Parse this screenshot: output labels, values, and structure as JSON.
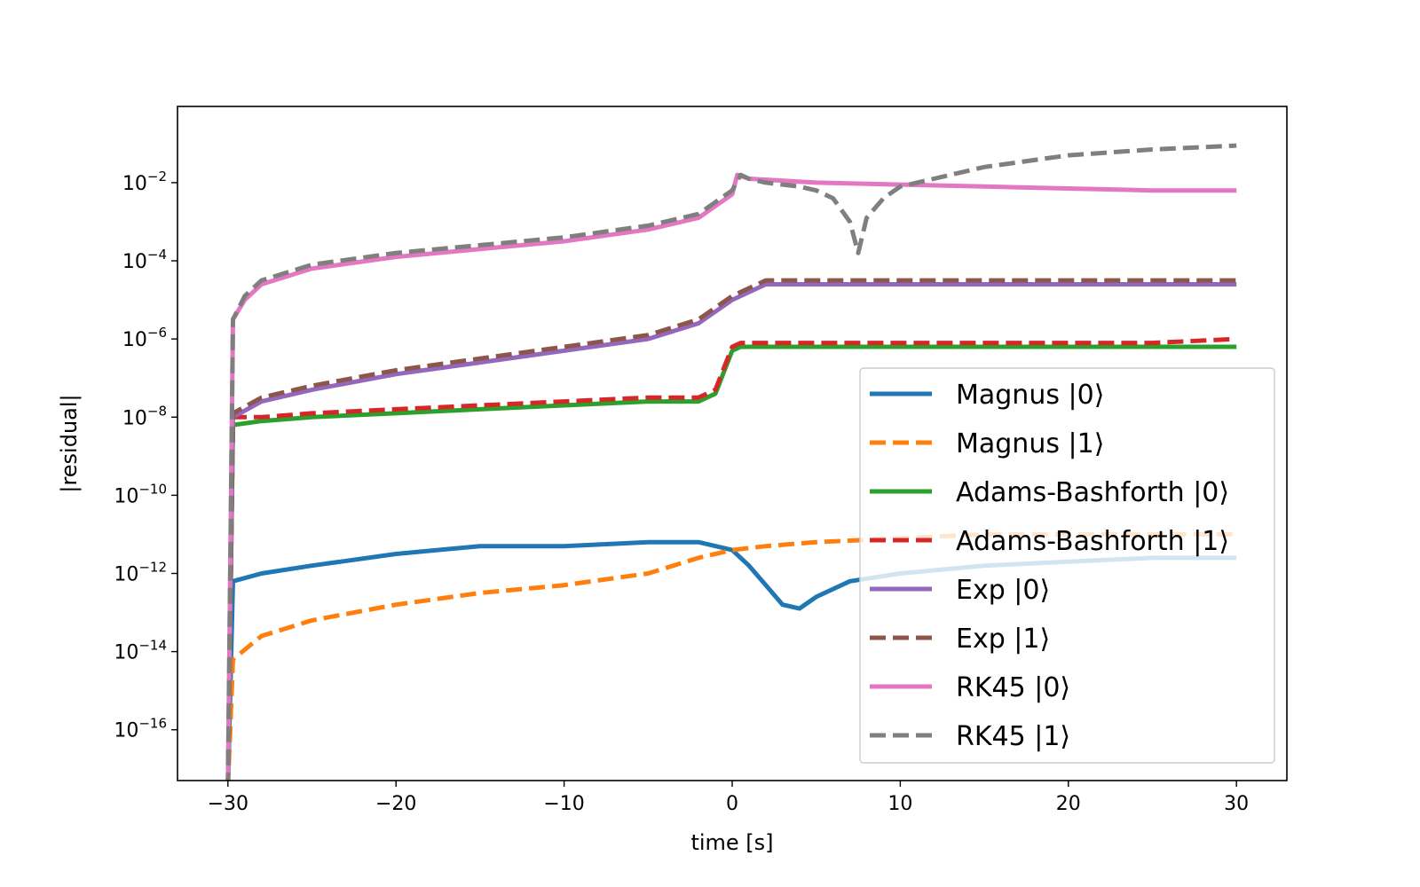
{
  "chart_data": {
    "type": "line",
    "xlabel": "time [s]",
    "ylabel": "|residual|",
    "xlim": [
      -33,
      33
    ],
    "ylim_log10": [
      -17.3,
      -0.05
    ],
    "yscale": "log",
    "grid": false,
    "legend_position": "lower-right",
    "x_ticks": [
      {
        "value": -30,
        "label": "−30"
      },
      {
        "value": -20,
        "label": "−20"
      },
      {
        "value": -10,
        "label": "−10"
      },
      {
        "value": 0,
        "label": "0"
      },
      {
        "value": 10,
        "label": "10"
      },
      {
        "value": 20,
        "label": "20"
      },
      {
        "value": 30,
        "label": "30"
      }
    ],
    "y_ticks": [
      {
        "exp": -2,
        "base": "10",
        "sup": "−2"
      },
      {
        "exp": -4,
        "base": "10",
        "sup": "−4"
      },
      {
        "exp": -6,
        "base": "10",
        "sup": "−6"
      },
      {
        "exp": -8,
        "base": "10",
        "sup": "−8"
      },
      {
        "exp": -10,
        "base": "10",
        "sup": "−10"
      },
      {
        "exp": -12,
        "base": "10",
        "sup": "−12"
      },
      {
        "exp": -14,
        "base": "10",
        "sup": "−14"
      },
      {
        "exp": -16,
        "base": "10",
        "sup": "−16"
      }
    ],
    "series": [
      {
        "name": "Magnus |0⟩",
        "color": "#1f77b4",
        "dashed": false,
        "x": [
          -30,
          -29.7,
          -28,
          -25,
          -20,
          -15,
          -10,
          -5,
          -2,
          0,
          1,
          2,
          3,
          4,
          5,
          6,
          7,
          10,
          15,
          20,
          25,
          30
        ],
        "y": [
          -17.5,
          -12.2,
          -12.0,
          -11.8,
          -11.5,
          -11.3,
          -11.3,
          -11.2,
          -11.2,
          -11.4,
          -11.8,
          -12.3,
          -12.8,
          -12.9,
          -12.6,
          -12.4,
          -12.2,
          -12.0,
          -11.8,
          -11.7,
          -11.6,
          -11.6
        ]
      },
      {
        "name": "Magnus |1⟩",
        "color": "#ff7f0e",
        "dashed": true,
        "x": [
          -30,
          -29.7,
          -28,
          -25,
          -20,
          -15,
          -10,
          -5,
          -2,
          0,
          2,
          5,
          10,
          15,
          20,
          25,
          30
        ],
        "y": [
          -17.5,
          -14.2,
          -13.6,
          -13.2,
          -12.8,
          -12.5,
          -12.3,
          -12.0,
          -11.6,
          -11.4,
          -11.3,
          -11.2,
          -11.1,
          -11.0,
          -11.0,
          -11.0,
          -11.0
        ]
      },
      {
        "name": "Adams-Bashforth |0⟩",
        "color": "#2ca02c",
        "dashed": false,
        "x": [
          -30,
          -29.7,
          -28,
          -25,
          -20,
          -15,
          -10,
          -5,
          -2,
          -1,
          0,
          0.5,
          1,
          2,
          5,
          10,
          15,
          20,
          25,
          30
        ],
        "y": [
          -17.5,
          -8.2,
          -8.1,
          -8.0,
          -7.9,
          -7.8,
          -7.7,
          -7.6,
          -7.6,
          -7.4,
          -6.3,
          -6.2,
          -6.2,
          -6.2,
          -6.2,
          -6.2,
          -6.2,
          -6.2,
          -6.2,
          -6.2
        ]
      },
      {
        "name": "Adams-Bashforth |1⟩",
        "color": "#d62728",
        "dashed": true,
        "x": [
          -30,
          -29.7,
          -28,
          -25,
          -20,
          -15,
          -10,
          -5,
          -2,
          -1,
          0,
          0.5,
          1,
          2,
          5,
          10,
          15,
          20,
          25,
          30
        ],
        "y": [
          -17.5,
          -8.0,
          -8.0,
          -7.9,
          -7.8,
          -7.7,
          -7.6,
          -7.5,
          -7.5,
          -7.3,
          -6.2,
          -6.1,
          -6.1,
          -6.1,
          -6.1,
          -6.1,
          -6.1,
          -6.1,
          -6.1,
          -6.0
        ]
      },
      {
        "name": "Exp |0⟩",
        "color": "#9467bd",
        "dashed": false,
        "x": [
          -30,
          -29.7,
          -28,
          -25,
          -20,
          -15,
          -10,
          -5,
          -2,
          0,
          2,
          5,
          10,
          15,
          20,
          25,
          30
        ],
        "y": [
          -17.5,
          -8.0,
          -7.6,
          -7.3,
          -6.9,
          -6.6,
          -6.3,
          -6.0,
          -5.6,
          -5.0,
          -4.6,
          -4.6,
          -4.6,
          -4.6,
          -4.6,
          -4.6,
          -4.6
        ]
      },
      {
        "name": "Exp |1⟩",
        "color": "#8c564b",
        "dashed": true,
        "x": [
          -30,
          -29.7,
          -28,
          -25,
          -20,
          -15,
          -10,
          -5,
          -2,
          0,
          2,
          5,
          10,
          15,
          20,
          25,
          30
        ],
        "y": [
          -17.5,
          -7.9,
          -7.5,
          -7.2,
          -6.8,
          -6.5,
          -6.2,
          -5.9,
          -5.5,
          -4.9,
          -4.5,
          -4.5,
          -4.5,
          -4.5,
          -4.5,
          -4.5,
          -4.5
        ]
      },
      {
        "name": "RK45 |0⟩",
        "color": "#e377c2",
        "dashed": false,
        "x": [
          -30,
          -29.7,
          -29,
          -28,
          -25,
          -20,
          -15,
          -10,
          -5,
          -2,
          0,
          0.3,
          1,
          5,
          10,
          15,
          20,
          25,
          30
        ],
        "y": [
          -17.5,
          -5.5,
          -5.0,
          -4.6,
          -4.2,
          -3.9,
          -3.7,
          -3.5,
          -3.2,
          -2.9,
          -2.3,
          -1.8,
          -1.9,
          -2.0,
          -2.05,
          -2.1,
          -2.15,
          -2.2,
          -2.2
        ]
      },
      {
        "name": "RK45 |1⟩",
        "color": "#7f7f7f",
        "dashed": true,
        "x": [
          -30,
          -29.7,
          -29,
          -28,
          -25,
          -20,
          -15,
          -10,
          -5,
          -2,
          0,
          0.5,
          1,
          2,
          4,
          5,
          6,
          7,
          7.5,
          8,
          9,
          10,
          15,
          20,
          25,
          30
        ],
        "y": [
          -17.5,
          -5.5,
          -4.9,
          -4.5,
          -4.1,
          -3.8,
          -3.6,
          -3.4,
          -3.1,
          -2.8,
          -2.2,
          -1.8,
          -1.9,
          -2.0,
          -2.1,
          -2.2,
          -2.4,
          -3.0,
          -3.8,
          -2.9,
          -2.4,
          -2.1,
          -1.6,
          -1.3,
          -1.15,
          -1.05
        ]
      }
    ]
  }
}
